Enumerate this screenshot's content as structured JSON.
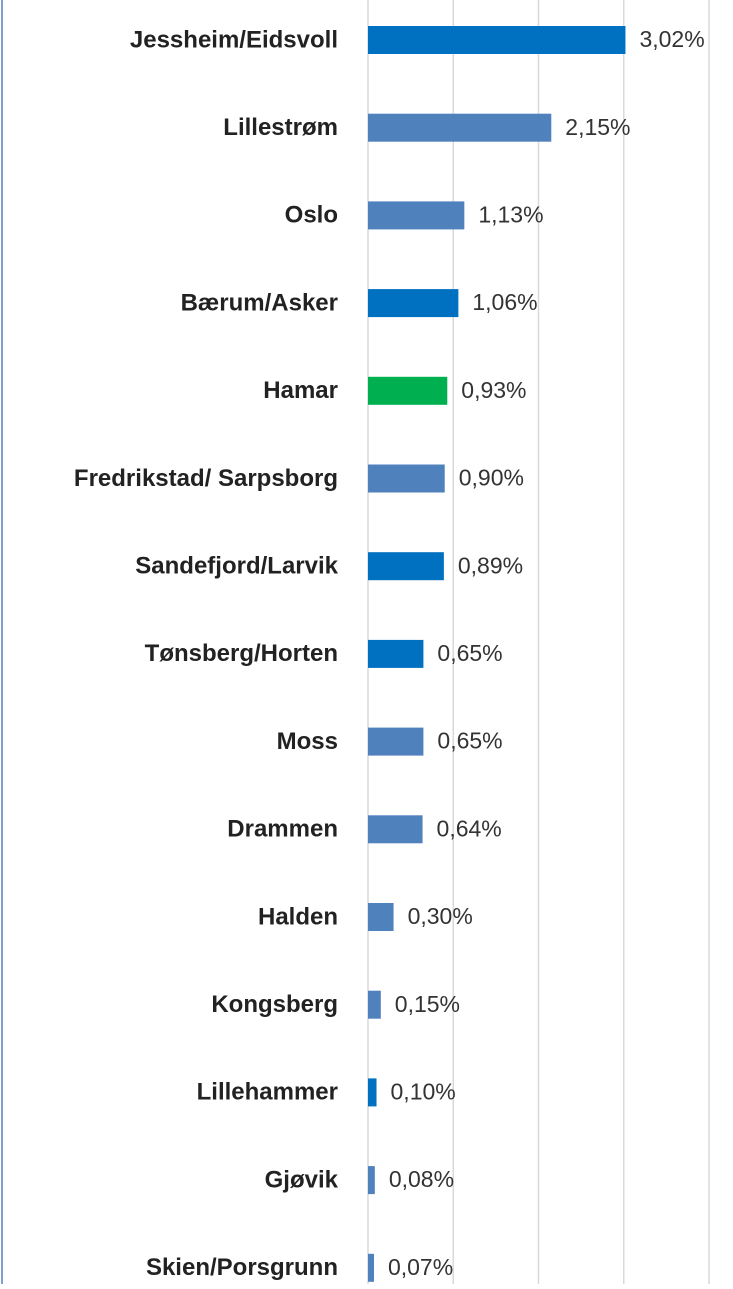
{
  "chart_data": {
    "type": "bar",
    "orientation": "horizontal",
    "categories": [
      "Jessheim/Eidsvoll",
      "Lillestrøm",
      "Oslo",
      "Bærum/Asker",
      "Hamar",
      "Fredrikstad/ Sarpsborg",
      "Sandefjord/Larvik",
      "Tønsberg/Horten",
      "Moss",
      "Drammen",
      "Halden",
      "Kongsberg",
      "Lillehammer",
      "Gjøvik",
      "Skien/Porsgrunn"
    ],
    "values": [
      3.02,
      2.15,
      1.13,
      1.06,
      0.93,
      0.9,
      0.89,
      0.65,
      0.65,
      0.64,
      0.3,
      0.15,
      0.1,
      0.08,
      0.07
    ],
    "value_labels": [
      "3,02%",
      "2,15%",
      "1,13%",
      "1,06%",
      "0,93%",
      "0,90%",
      "0,89%",
      "0,65%",
      "0,65%",
      "0,64%",
      "0,30%",
      "0,15%",
      "0,10%",
      "0,08%",
      "0,07%"
    ],
    "colors": [
      "#0070c0",
      "#4f81bd",
      "#4f81bd",
      "#0070c0",
      "#00b050",
      "#4f81bd",
      "#0070c0",
      "#0070c0",
      "#4f81bd",
      "#4f81bd",
      "#4f81bd",
      "#4f81bd",
      "#0070c0",
      "#4f81bd",
      "#4f81bd"
    ],
    "xlim": [
      0,
      4
    ],
    "xticks": [
      0,
      1,
      2,
      3,
      4
    ],
    "grid": true
  }
}
